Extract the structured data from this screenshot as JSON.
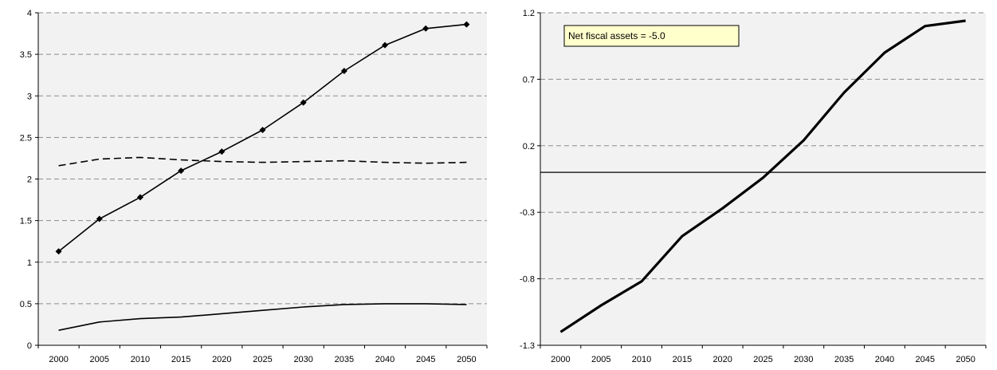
{
  "chart_data": [
    {
      "type": "line",
      "x": [
        2000,
        2005,
        2010,
        2015,
        2020,
        2025,
        2030,
        2035,
        2040,
        2045,
        2050
      ],
      "ylim": [
        0,
        4
      ],
      "yticks": [
        "0",
        "0.5",
        "1",
        "1.5",
        "2",
        "2.5",
        "3",
        "3.5",
        "4"
      ],
      "xticks": [
        "2000",
        "2005",
        "2010",
        "2015",
        "2020",
        "2025",
        "2030",
        "2035",
        "2040",
        "2045",
        "2050"
      ],
      "grid": "horizontal dashed",
      "background": "#f2f2f2",
      "series": [
        {
          "style": "solid-diamond-markers",
          "values": [
            1.13,
            1.52,
            1.78,
            2.1,
            2.33,
            2.59,
            2.92,
            3.3,
            3.61,
            3.81,
            3.86
          ]
        },
        {
          "style": "dashed",
          "values": [
            2.16,
            2.24,
            2.26,
            2.23,
            2.21,
            2.2,
            2.21,
            2.22,
            2.2,
            2.19,
            2.2
          ]
        },
        {
          "style": "solid",
          "values": [
            0.18,
            0.28,
            0.32,
            0.34,
            0.38,
            0.42,
            0.46,
            0.49,
            0.5,
            0.5,
            0.49
          ]
        }
      ]
    },
    {
      "type": "line",
      "x": [
        2000,
        2005,
        2010,
        2015,
        2020,
        2025,
        2030,
        2035,
        2040,
        2045,
        2050
      ],
      "ylim": [
        -1.3,
        1.2
      ],
      "yticks": [
        "-1.3",
        "-0.8",
        "-0.3",
        "0.2",
        "0.7",
        "1.2"
      ],
      "xticks": [
        "2000",
        "2005",
        "2010",
        "2015",
        "2020",
        "2025",
        "2030",
        "2035",
        "2040",
        "2045",
        "2050"
      ],
      "grid": "horizontal dashed",
      "background": "#f2f2f2",
      "reference_line": 0,
      "annotation": "Net fiscal assets = -5.0",
      "annotation_color": "#ffffcc",
      "series": [
        {
          "style": "thick-solid",
          "values": [
            -1.2,
            -1.0,
            -0.82,
            -0.48,
            -0.27,
            -0.04,
            0.24,
            0.6,
            0.9,
            1.1,
            1.14
          ]
        }
      ]
    }
  ]
}
